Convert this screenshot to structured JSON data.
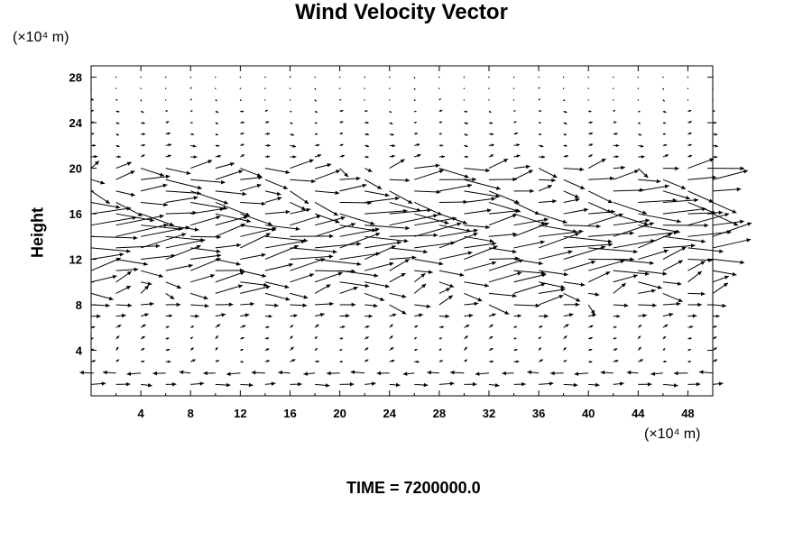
{
  "chart_data": {
    "type": "vector-field",
    "title": "Wind Velocity Vector",
    "ylabel": "Height",
    "y_unit": "(×10⁴ m)",
    "x_unit": "(×10⁴ m)",
    "footer": "TIME = 7200000.0",
    "xlim": [
      0,
      50
    ],
    "ylim": [
      0,
      29
    ],
    "x_ticks": [
      4,
      8,
      12,
      16,
      20,
      24,
      28,
      32,
      36,
      40,
      44,
      48
    ],
    "y_ticks": [
      4,
      8,
      12,
      16,
      20,
      24,
      28
    ],
    "grid": false,
    "legend": "none",
    "line_color": "#000000",
    "grid_x": {
      "start": 0,
      "step": 2,
      "count": 26
    },
    "grid_y": {
      "start": 1,
      "step": 1,
      "count": 28
    },
    "jet_regions": [
      {
        "x_range": [
          0,
          50
        ],
        "y_range": [
          9,
          20
        ],
        "strength": 3.0
      },
      {
        "x_range": [
          24,
          40
        ],
        "y_range": [
          8,
          9.5
        ],
        "strength": 2.5
      }
    ],
    "arrow_rows": [
      {
        "y": 1,
        "u": 1.2,
        "v": 0
      },
      {
        "y": 2,
        "u": -1.2,
        "v": 0
      },
      {
        "y": 3,
        "u": 0.4,
        "v": 0.1
      },
      {
        "y": 4,
        "u": 0.3,
        "v": 0.2
      },
      {
        "y": 5,
        "u": 0.3,
        "v": 0.2
      },
      {
        "y": 6,
        "u": 0.4,
        "v": 0.2
      },
      {
        "y": 7,
        "u": 0.8,
        "v": 0.1
      },
      {
        "y": 8,
        "u": 1.5,
        "v": 0.0
      },
      {
        "y": 9,
        "u": 1.8,
        "v": 0.1
      },
      {
        "y": 10,
        "u": 2.2,
        "v": 0.2
      },
      {
        "y": 11,
        "u": 2.8,
        "v": 0.3
      },
      {
        "y": 12,
        "u": 3.2,
        "v": 0.4
      },
      {
        "y": 13,
        "u": 3.6,
        "v": 0.5
      },
      {
        "y": 14,
        "u": 3.8,
        "v": 0.4
      },
      {
        "y": 15,
        "u": 3.4,
        "v": 0.2
      },
      {
        "y": 16,
        "u": 3.0,
        "v": -0.3
      },
      {
        "y": 17,
        "u": 2.6,
        "v": -0.4
      },
      {
        "y": 18,
        "u": 2.4,
        "v": -0.3
      },
      {
        "y": 19,
        "u": 2.4,
        "v": 0.0
      },
      {
        "y": 20,
        "u": 1.8,
        "v": 0.0
      },
      {
        "y": 21,
        "u": 0.5,
        "v": 0.1
      },
      {
        "y": 22,
        "u": 0.45,
        "v": 0.0
      },
      {
        "y": 23,
        "u": 0.35,
        "v": 0.0
      },
      {
        "y": 24,
        "u": 0.3,
        "v": 0.0
      },
      {
        "y": 25,
        "u": 0.25,
        "v": 0.0
      },
      {
        "y": 26,
        "u": 0.1,
        "v": 0.0
      },
      {
        "y": 27,
        "u": 0.05,
        "v": 0.0
      },
      {
        "y": 28,
        "u": 0.02,
        "v": 0.0
      }
    ]
  }
}
